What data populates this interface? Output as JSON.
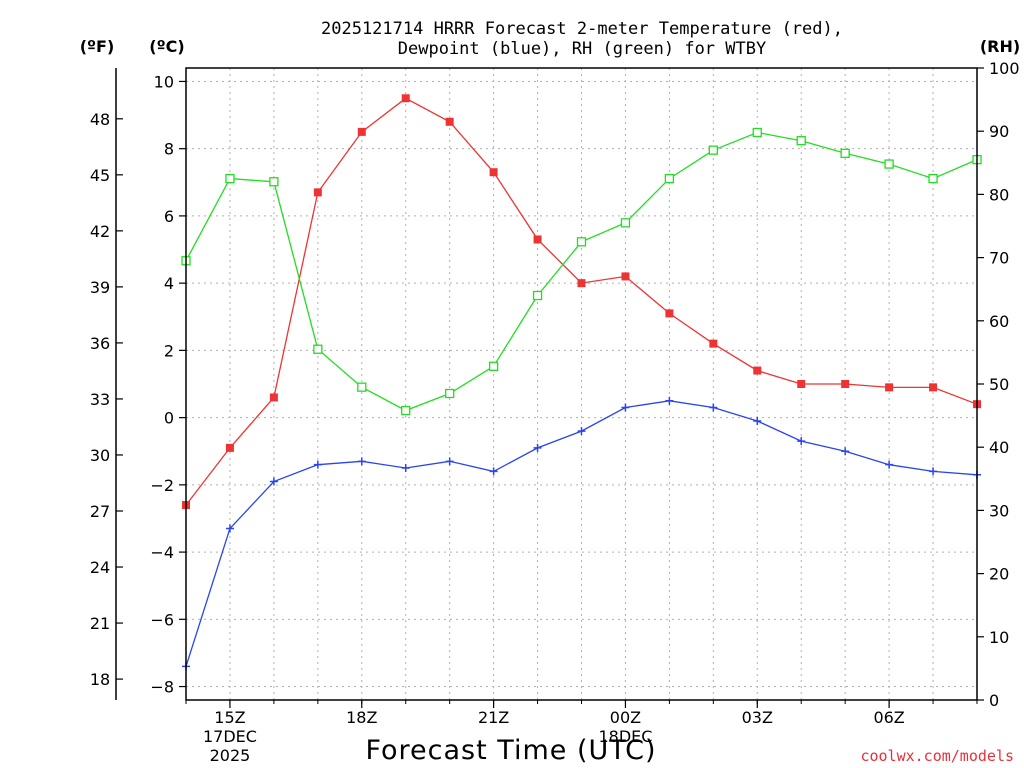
{
  "chart_data": {
    "type": "line",
    "title_line1": "2025121714 HRRR Forecast 2-meter Temperature (red),",
    "title_line2": "Dewpoint (blue), RH (green) for WTBY",
    "unit_left_f": "(ºF)",
    "unit_left_c": "(ºC)",
    "unit_right": "(RH)",
    "xlabel": "Forecast Time (UTC)",
    "credit": "coolwx.com/models",
    "x_hours": [
      14,
      15,
      16,
      17,
      18,
      19,
      20,
      21,
      22,
      23,
      24,
      25,
      26,
      27,
      28,
      29,
      30,
      31,
      32
    ],
    "xlim": [
      14,
      32
    ],
    "x_ticks": [
      {
        "hour": 15,
        "label": "15Z",
        "date1": "17DEC",
        "date2": "2025"
      },
      {
        "hour": 18,
        "label": "18Z"
      },
      {
        "hour": 21,
        "label": "21Z"
      },
      {
        "hour": 24,
        "label": "00Z",
        "date1": "18DEC"
      },
      {
        "hour": 27,
        "label": "03Z"
      },
      {
        "hour": 30,
        "label": "06Z"
      }
    ],
    "ylim_c": [
      -8.4,
      10.4
    ],
    "yticks_c": [
      -8,
      -6,
      -4,
      -2,
      0,
      2,
      4,
      6,
      8,
      10
    ],
    "yticks_f": [
      18,
      21,
      24,
      27,
      30,
      33,
      36,
      39,
      42,
      45,
      48
    ],
    "ylim_rh": [
      0,
      100
    ],
    "yticks_rh": [
      0,
      10,
      20,
      30,
      40,
      50,
      60,
      70,
      80,
      90,
      100
    ],
    "series": [
      {
        "key": "temp",
        "axis": "c",
        "color": "#ee3333",
        "marker": "filled-square",
        "values": [
          -2.6,
          -0.9,
          0.6,
          6.7,
          8.5,
          9.5,
          8.8,
          7.3,
          5.3,
          4.0,
          4.2,
          3.1,
          2.2,
          1.4,
          1.0,
          1.0,
          0.9,
          0.9,
          0.4
        ]
      },
      {
        "key": "dewpoint",
        "axis": "c",
        "color": "#2a44ee",
        "marker": "plus",
        "values": [
          -7.4,
          -3.3,
          -1.9,
          -1.4,
          -1.3,
          -1.5,
          -1.3,
          -1.6,
          -0.9,
          -0.4,
          0.3,
          0.5,
          0.3,
          -0.1,
          -0.7,
          -1.0,
          -1.4,
          -1.6,
          -1.7
        ]
      },
      {
        "key": "rh",
        "axis": "rh",
        "color": "#22dd22",
        "marker": "open-square",
        "values": [
          69.5,
          82.5,
          82,
          55.5,
          49.5,
          45.8,
          48.5,
          52.8,
          64,
          72.5,
          75.5,
          82.5,
          87,
          89.8,
          88.5,
          86.5,
          84.8,
          82.5,
          85.5
        ]
      }
    ]
  }
}
